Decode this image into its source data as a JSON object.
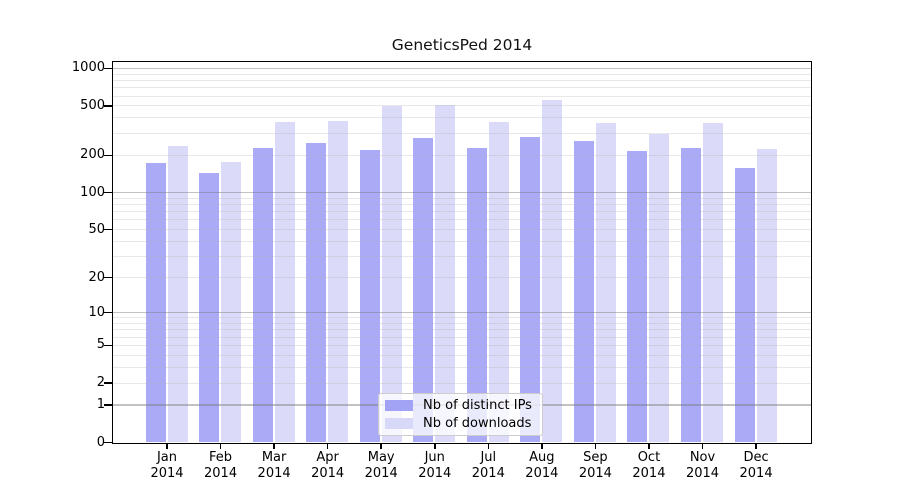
{
  "chart_data": {
    "type": "bar",
    "title": "GeneticsPed 2014",
    "y_scale": "log10(value+1)",
    "ylim": [
      0,
      1000
    ],
    "yticks": [
      0,
      1,
      2,
      5,
      10,
      20,
      50,
      100,
      200,
      500,
      1000
    ],
    "grid": {
      "major_values": [
        1,
        10,
        100,
        1000
      ],
      "minor_decades": [
        1,
        10,
        100
      ]
    },
    "categories": [
      "Jan",
      "Feb",
      "Mar",
      "Apr",
      "May",
      "Jun",
      "Jul",
      "Aug",
      "Sep",
      "Oct",
      "Nov",
      "Dec"
    ],
    "year_label": "2014",
    "series": [
      {
        "name": "Nb of distinct IPs",
        "color": "#a3a3f5",
        "values": [
          172,
          144,
          228,
          250,
          220,
          274,
          228,
          280,
          258,
          216,
          228,
          157
        ]
      },
      {
        "name": "Nb of downloads",
        "color": "#d8d8f9",
        "values": [
          236,
          176,
          368,
          376,
          496,
          505,
          368,
          554,
          362,
          296,
          362,
          225
        ]
      }
    ],
    "legend_position": "bottom-center"
  }
}
